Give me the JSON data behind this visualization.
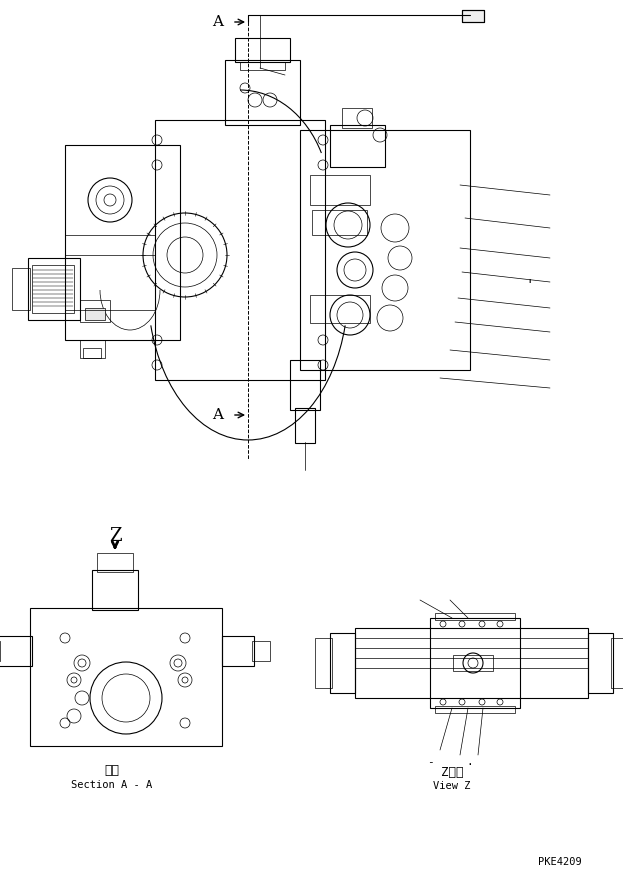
{
  "bg_color": "#ffffff",
  "line_color": "#000000",
  "part_number": "PKE4209",
  "section_label_jp": "断面",
  "section_label_en": "Section A - A",
  "view_label_jp": "Z　視",
  "view_label_en": "View Z",
  "figsize": [
    6.23,
    8.76
  ],
  "dpi": 100
}
